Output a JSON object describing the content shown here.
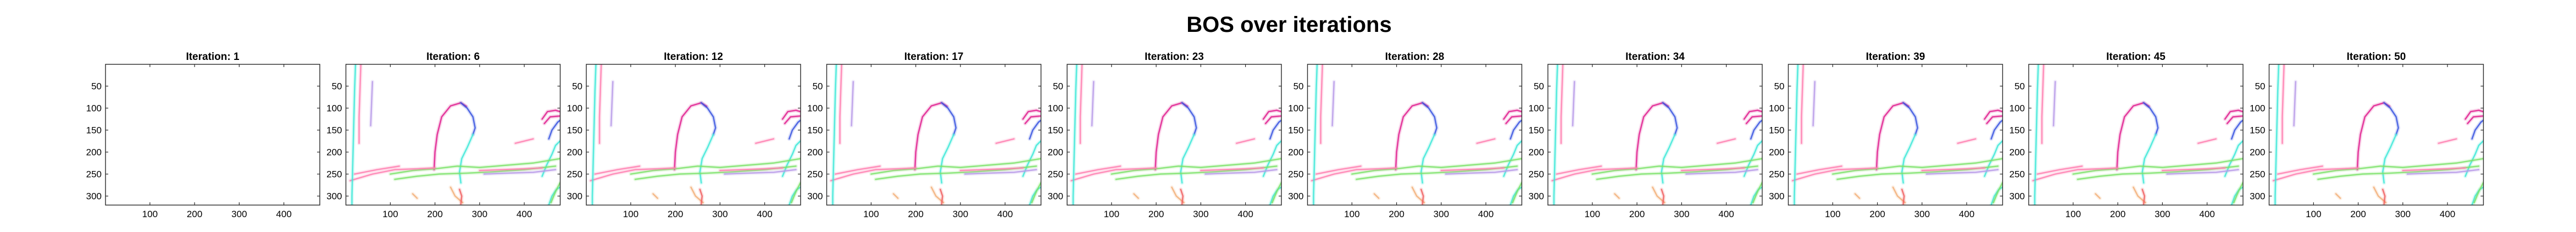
{
  "figure": {
    "title": "BOS over iterations"
  },
  "colors": {
    "background": "#ffffff",
    "axes_frame": "#262626",
    "text": "#000000",
    "magenta": "#e0208f",
    "blue": "#3a55e0",
    "cyan": "#3fe8d8",
    "pink": "#ff7fb0",
    "green": "#7de26b",
    "orange": "#f2b07a",
    "red": "#f06060",
    "lavender": "#b89ae8"
  },
  "chart_data": {
    "type": "heatmap",
    "layout": "1x10 row of image panels",
    "shared_axes": {
      "xlim": [
        0.5,
        480.5
      ],
      "ylim": [
        0.5,
        320.5
      ],
      "y_reversed": true,
      "xticks": [
        100,
        200,
        300,
        400
      ],
      "yticks": [
        50,
        100,
        150,
        200,
        250,
        300
      ],
      "grid": false,
      "legend": "none"
    },
    "panels": [
      {
        "title": "Iteration: 1",
        "iteration": 1,
        "content": "blank"
      },
      {
        "title": "Iteration: 6",
        "iteration": 6,
        "content": "bos"
      },
      {
        "title": "Iteration: 12",
        "iteration": 12,
        "content": "bos"
      },
      {
        "title": "Iteration: 17",
        "iteration": 17,
        "content": "bos"
      },
      {
        "title": "Iteration: 23",
        "iteration": 23,
        "content": "bos"
      },
      {
        "title": "Iteration: 28",
        "iteration": 28,
        "content": "bos"
      },
      {
        "title": "Iteration: 34",
        "iteration": 34,
        "content": "bos"
      },
      {
        "title": "Iteration: 39",
        "iteration": 39,
        "content": "bos"
      },
      {
        "title": "Iteration: 45",
        "iteration": 45,
        "content": "bos"
      },
      {
        "title": "Iteration: 50",
        "iteration": 50,
        "content": "bos"
      }
    ],
    "strokes": [
      {
        "color": "magenta",
        "points": [
          [
            198,
            240
          ],
          [
            200,
            200
          ],
          [
            205,
            160
          ],
          [
            215,
            120
          ],
          [
            235,
            95
          ],
          [
            258,
            88
          ],
          [
            270,
            96
          ]
        ]
      },
      {
        "color": "blue",
        "points": [
          [
            258,
            88
          ],
          [
            272,
            100
          ],
          [
            285,
            120
          ],
          [
            290,
            145
          ],
          [
            285,
            160
          ]
        ]
      },
      {
        "color": "cyan",
        "points": [
          [
            285,
            160
          ],
          [
            272,
            190
          ],
          [
            260,
            215
          ],
          [
            255,
            245
          ],
          [
            258,
            270
          ]
        ]
      },
      {
        "color": "magenta",
        "points": [
          [
            440,
            125
          ],
          [
            452,
            108
          ],
          [
            470,
            105
          ],
          [
            480,
            108
          ]
        ]
      },
      {
        "color": "magenta",
        "points": [
          [
            445,
            135
          ],
          [
            458,
            120
          ],
          [
            480,
            118
          ]
        ]
      },
      {
        "color": "blue",
        "points": [
          [
            455,
            170
          ],
          [
            462,
            150
          ],
          [
            475,
            132
          ],
          [
            480,
            128
          ]
        ]
      },
      {
        "color": "cyan",
        "points": [
          [
            440,
            255
          ],
          [
            450,
            230
          ],
          [
            462,
            205
          ],
          [
            470,
            185
          ],
          [
            480,
            175
          ]
        ]
      },
      {
        "color": "cyan",
        "points": [
          [
            455,
            320
          ],
          [
            462,
            300
          ],
          [
            472,
            285
          ],
          [
            480,
            280
          ]
        ]
      },
      {
        "color": "green",
        "points": [
          [
            460,
            315
          ],
          [
            470,
            290
          ],
          [
            480,
            270
          ]
        ]
      },
      {
        "color": "green",
        "points": [
          [
            100,
            250
          ],
          [
            150,
            242
          ],
          [
            200,
            238
          ],
          [
            250,
            232
          ],
          [
            300,
            235
          ],
          [
            360,
            230
          ],
          [
            420,
            225
          ],
          [
            480,
            215
          ]
        ]
      },
      {
        "color": "green",
        "points": [
          [
            110,
            262
          ],
          [
            160,
            255
          ],
          [
            210,
            250
          ],
          [
            270,
            248
          ],
          [
            330,
            245
          ],
          [
            400,
            240
          ],
          [
            470,
            232
          ]
        ]
      },
      {
        "color": "pink",
        "points": [
          [
            10,
            265
          ],
          [
            60,
            250
          ],
          [
            110,
            240
          ],
          [
            160,
            238
          ],
          [
            200,
            236
          ]
        ]
      },
      {
        "color": "pink",
        "points": [
          [
            20,
            250
          ],
          [
            70,
            240
          ],
          [
            120,
            232
          ]
        ]
      },
      {
        "color": "pink",
        "points": [
          [
            300,
            242
          ],
          [
            350,
            240
          ],
          [
            400,
            238
          ],
          [
            440,
            236
          ]
        ]
      },
      {
        "color": "lavender",
        "points": [
          [
            310,
            250
          ],
          [
            360,
            248
          ],
          [
            420,
            246
          ],
          [
            470,
            240
          ]
        ]
      },
      {
        "color": "cyan",
        "points": [
          [
            22,
            0
          ],
          [
            20,
            60
          ],
          [
            18,
            140
          ],
          [
            16,
            220
          ],
          [
            14,
            300
          ],
          [
            14,
            320
          ]
        ]
      },
      {
        "color": "pink",
        "points": [
          [
            34,
            0
          ],
          [
            32,
            60
          ],
          [
            30,
            120
          ],
          [
            30,
            180
          ]
        ]
      },
      {
        "color": "lavender",
        "points": [
          [
            60,
            40
          ],
          [
            58,
            90
          ],
          [
            56,
            140
          ]
        ]
      },
      {
        "color": "orange",
        "points": [
          [
            235,
            280
          ],
          [
            245,
            300
          ],
          [
            262,
            315
          ]
        ]
      },
      {
        "color": "red",
        "points": [
          [
            255,
            285
          ],
          [
            260,
            300
          ],
          [
            258,
            318
          ]
        ]
      },
      {
        "color": "orange",
        "points": [
          [
            150,
            295
          ],
          [
            160,
            305
          ]
        ]
      },
      {
        "color": "pink",
        "points": [
          [
            380,
            180
          ],
          [
            400,
            175
          ],
          [
            420,
            170
          ]
        ]
      }
    ]
  }
}
